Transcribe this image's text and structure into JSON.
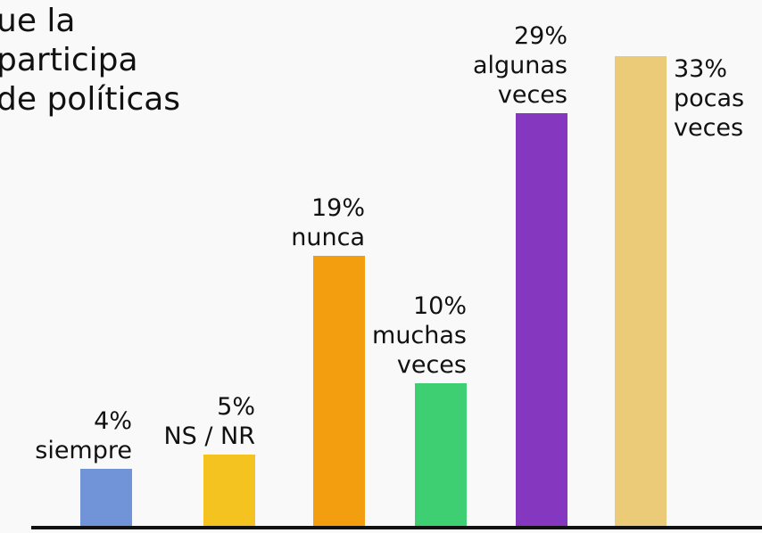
{
  "chart_data": {
    "type": "bar",
    "title_lines": [
      "ue la",
      "participa",
      "de políticas"
    ],
    "categories": [
      "siempre",
      "NS / NR",
      "nunca",
      "muchas veces",
      "algunas veces",
      "pocas veces"
    ],
    "values": [
      4,
      5,
      19,
      10,
      29,
      33
    ],
    "value_labels": [
      "4%",
      "5%",
      "19%",
      "10%",
      "29%",
      "33%"
    ],
    "colors": [
      "#7193d8",
      "#f4c31f",
      "#f29e0e",
      "#3ecf73",
      "#8537bf",
      "#eccb78"
    ]
  }
}
